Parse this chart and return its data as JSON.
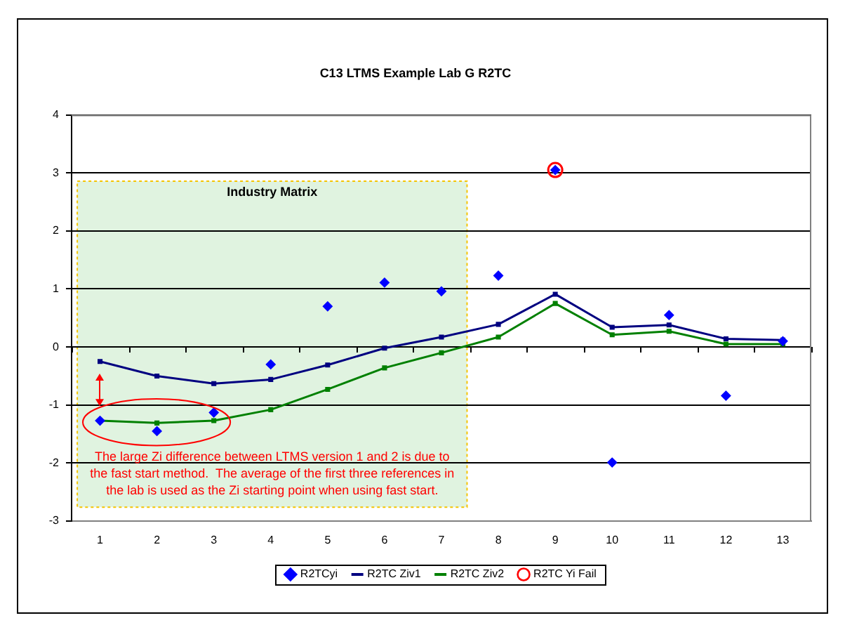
{
  "chart_data": {
    "type": "line",
    "title": "C13 LTMS Example Lab G R2TC",
    "x": [
      1,
      2,
      3,
      4,
      5,
      6,
      7,
      8,
      9,
      10,
      11,
      12,
      13
    ],
    "series": [
      {
        "name": "R2TCyi",
        "type": "scatter",
        "marker": "diamond",
        "color": "#0000ff",
        "values": [
          -1.27,
          -1.45,
          -1.13,
          -0.3,
          0.7,
          1.11,
          0.96,
          1.23,
          3.05,
          -1.99,
          0.55,
          -0.84,
          0.1
        ]
      },
      {
        "name": "R2TC Ziv1",
        "type": "line",
        "marker": "square",
        "color": "#000080",
        "values": [
          -0.25,
          -0.5,
          -0.63,
          -0.56,
          -0.31,
          -0.02,
          0.17,
          0.39,
          0.91,
          0.34,
          0.38,
          0.14,
          0.12
        ]
      },
      {
        "name": "R2TC Ziv2",
        "type": "line",
        "marker": "square",
        "color": "#008000",
        "values": [
          -1.27,
          -1.31,
          -1.27,
          -1.08,
          -0.73,
          -0.36,
          -0.1,
          0.17,
          0.75,
          0.21,
          0.27,
          0.05,
          0.05
        ]
      },
      {
        "name": "R2TC Yi Fail",
        "type": "scatter",
        "marker": "circle",
        "color": "#ff0000",
        "values": [
          null,
          null,
          null,
          null,
          null,
          null,
          null,
          null,
          3.05,
          null,
          null,
          null,
          null
        ]
      }
    ],
    "xlim": [
      0.5,
      13.5
    ],
    "xticks": [
      1,
      2,
      3,
      4,
      5,
      6,
      7,
      8,
      9,
      10,
      11,
      12,
      13
    ],
    "ylim": [
      -3,
      4
    ],
    "yticks": [
      -3,
      -2,
      -1,
      0,
      1,
      2,
      3,
      4
    ],
    "grid": "y",
    "legend": "bottom",
    "bands": [
      {
        "axis": "x",
        "from": 0.6,
        "to": 7.45,
        "label": "Industry Matrix",
        "color": "#e0f3e0"
      }
    ],
    "annotations": [
      "The large Zi difference between LTMS version 1 and 2 is due to the fast start method.  The average of the first three references in the lab is used as the Zi starting point when using fast start."
    ]
  }
}
